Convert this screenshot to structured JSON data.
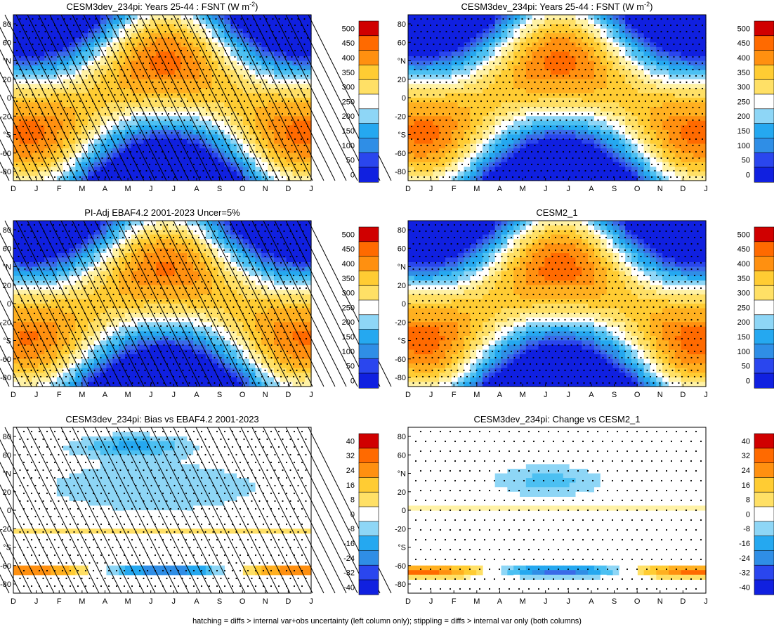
{
  "figure": {
    "caption": "hatching = diffs > internal var+obs uncertainty (left column only); stippling = diffs > internal var only (both columns)"
  },
  "axes": {
    "months": [
      "D",
      "J",
      "F",
      "M",
      "A",
      "M",
      "J",
      "J",
      "A",
      "S",
      "O",
      "N",
      "D",
      "J"
    ],
    "lat_ticks": [
      "80",
      "60",
      "°N",
      "20",
      "0",
      "-20",
      "°S",
      "-60",
      "-80"
    ]
  },
  "chart_data": [
    {
      "id": "p1",
      "type": "heatmap",
      "kind": "field",
      "title": "CESM3dev_234pi: Years 25-44 : FSNT (W m",
      "title_sup": "-2",
      "title_close": ")",
      "colorbar_labels": [
        "500",
        "450",
        "400",
        "350",
        "300",
        "250",
        "200",
        "150",
        "100",
        "50",
        "0"
      ],
      "hatching": true,
      "stippling": "dense"
    },
    {
      "id": "p2",
      "type": "heatmap",
      "kind": "field",
      "title": "CESM3dev_234pi: Years 25-44 : FSNT (W m",
      "title_sup": "-2",
      "title_close": ")",
      "colorbar_labels": [
        "500",
        "450",
        "400",
        "350",
        "300",
        "250",
        "200",
        "150",
        "100",
        "50",
        "0"
      ],
      "hatching": false,
      "stippling": "dense"
    },
    {
      "id": "p3",
      "type": "heatmap",
      "kind": "field",
      "title": "PI-Adj EBAF4.2 2001-2023 Uncer=5%",
      "colorbar_labels": [
        "500",
        "450",
        "400",
        "350",
        "300",
        "250",
        "200",
        "150",
        "100",
        "50",
        "0"
      ],
      "hatching": true,
      "stippling": "dense"
    },
    {
      "id": "p4",
      "type": "heatmap",
      "kind": "field",
      "title": "CESM2_1",
      "colorbar_labels": [
        "500",
        "450",
        "400",
        "350",
        "300",
        "250",
        "200",
        "150",
        "100",
        "50",
        "0"
      ],
      "hatching": false,
      "stippling": "dense"
    },
    {
      "id": "p5",
      "type": "heatmap",
      "kind": "bias",
      "title": "CESM3dev_234pi: Bias vs EBAF4.2 2001-2023",
      "colorbar_labels": [
        "40",
        "32",
        "24",
        "16",
        "8",
        "0",
        "-8",
        "-16",
        "-24",
        "-32",
        "-40"
      ],
      "hatching": true,
      "stippling": "medium"
    },
    {
      "id": "p6",
      "type": "heatmap",
      "kind": "change",
      "title": "CESM3dev_234pi: Change vs CESM2_1",
      "colorbar_labels": [
        "40",
        "32",
        "24",
        "16",
        "8",
        "0",
        "-8",
        "-16",
        "-24",
        "-32",
        "-40"
      ],
      "hatching": false,
      "stippling": "sparse"
    }
  ],
  "colors": {
    "scale": [
      "#1020e0",
      "#2a46ee",
      "#3a6ae8",
      "#2f8ee6",
      "#25a8f0",
      "#4cc0f2",
      "#8ed6f6",
      "#ffffff",
      "#fff2a6",
      "#ffe066",
      "#ffcc33",
      "#ffb020",
      "#ff9010",
      "#ff6a00",
      "#f03a00",
      "#d00000"
    ]
  }
}
